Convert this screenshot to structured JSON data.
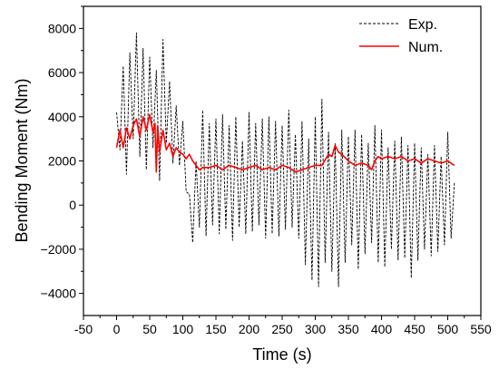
{
  "chart_data": {
    "type": "line",
    "xlabel": "Time (s)",
    "ylabel": "Bending Moment (Nm)",
    "xlim": [
      -50,
      550
    ],
    "ylim": [
      -5000,
      9000
    ],
    "xticks": [
      -50,
      0,
      50,
      100,
      150,
      200,
      250,
      300,
      350,
      400,
      450,
      500,
      550
    ],
    "yticks": [
      -4000,
      -2000,
      0,
      2000,
      4000,
      6000,
      8000
    ],
    "legend_position": "top-right",
    "grid": false,
    "series": [
      {
        "name": "Exp.",
        "color": "#000000",
        "style": "dashed",
        "x": [
          0,
          5,
          10,
          15,
          20,
          25,
          30,
          35,
          40,
          45,
          50,
          55,
          60,
          65,
          70,
          75,
          80,
          85,
          90,
          95,
          100,
          105,
          110,
          115,
          120,
          125,
          130,
          135,
          140,
          145,
          150,
          155,
          160,
          165,
          170,
          175,
          180,
          185,
          190,
          195,
          200,
          205,
          210,
          215,
          220,
          225,
          230,
          235,
          240,
          245,
          250,
          255,
          260,
          265,
          270,
          275,
          280,
          285,
          290,
          295,
          300,
          305,
          310,
          315,
          320,
          325,
          330,
          335,
          340,
          345,
          350,
          355,
          360,
          365,
          370,
          375,
          380,
          385,
          390,
          395,
          400,
          405,
          410,
          415,
          420,
          425,
          430,
          435,
          440,
          445,
          450,
          455,
          460,
          465,
          470,
          475,
          480,
          485,
          490,
          495,
          500,
          505,
          510
        ],
        "y": [
          4200,
          2500,
          6300,
          1400,
          6900,
          3000,
          7800,
          2200,
          7100,
          1600,
          6700,
          2600,
          6100,
          1100,
          7500,
          2800,
          5600,
          1900,
          4500,
          1800,
          3800,
          600,
          500,
          -1700,
          2000,
          -1000,
          4300,
          -1400,
          3700,
          -900,
          3900,
          -1300,
          4100,
          -1100,
          3600,
          -1600,
          4000,
          -1000,
          2900,
          -1300,
          4200,
          -1200,
          3700,
          -900,
          3900,
          -1500,
          4000,
          -1300,
          3800,
          -1400,
          3600,
          -1100,
          4300,
          -1000,
          3200,
          -1500,
          3800,
          -2700,
          3000,
          -3400,
          4000,
          -3700,
          4800,
          -2600,
          3300,
          -3000,
          2800,
          -3700,
          3400,
          -2600,
          3100,
          -1800,
          3400,
          -2900,
          3200,
          -2200,
          2800,
          -1700,
          3600,
          -2600,
          3400,
          -2800,
          2600,
          -2000,
          2900,
          -2500,
          3100,
          -2400,
          2700,
          -3300,
          2800,
          -2500,
          2600,
          -2000,
          2300,
          -2300,
          2700,
          -2100,
          2200,
          -1800,
          3300,
          -1500,
          1000
        ]
      },
      {
        "name": "Num.",
        "color": "#ff0000",
        "style": "solid",
        "x": [
          0,
          5,
          10,
          15,
          20,
          25,
          30,
          35,
          40,
          45,
          50,
          55,
          58,
          60,
          62,
          65,
          70,
          75,
          80,
          85,
          90,
          95,
          100,
          105,
          110,
          115,
          120,
          125,
          130,
          140,
          150,
          160,
          170,
          180,
          190,
          200,
          210,
          220,
          230,
          240,
          250,
          260,
          270,
          280,
          290,
          300,
          310,
          320,
          325,
          330,
          335,
          340,
          350,
          360,
          370,
          380,
          385,
          390,
          395,
          400,
          410,
          420,
          430,
          440,
          450,
          460,
          470,
          480,
          490,
          500,
          510
        ],
        "y": [
          2600,
          3400,
          2600,
          3500,
          3000,
          3600,
          3900,
          3100,
          4000,
          3400,
          4100,
          3300,
          3700,
          1500,
          3600,
          2400,
          3400,
          2500,
          2800,
          2200,
          2600,
          2400,
          2300,
          2100,
          2300,
          2000,
          1800,
          1600,
          1700,
          1700,
          1800,
          1600,
          1800,
          1700,
          1600,
          1700,
          1800,
          1600,
          1700,
          1600,
          1800,
          1700,
          1500,
          1600,
          1700,
          1800,
          1800,
          2300,
          2200,
          2700,
          2400,
          2300,
          2000,
          1800,
          1900,
          1800,
          1600,
          2000,
          2200,
          2100,
          2200,
          2100,
          2200,
          2000,
          2100,
          1900,
          2100,
          2000,
          1900,
          2000,
          1800
        ]
      }
    ]
  }
}
